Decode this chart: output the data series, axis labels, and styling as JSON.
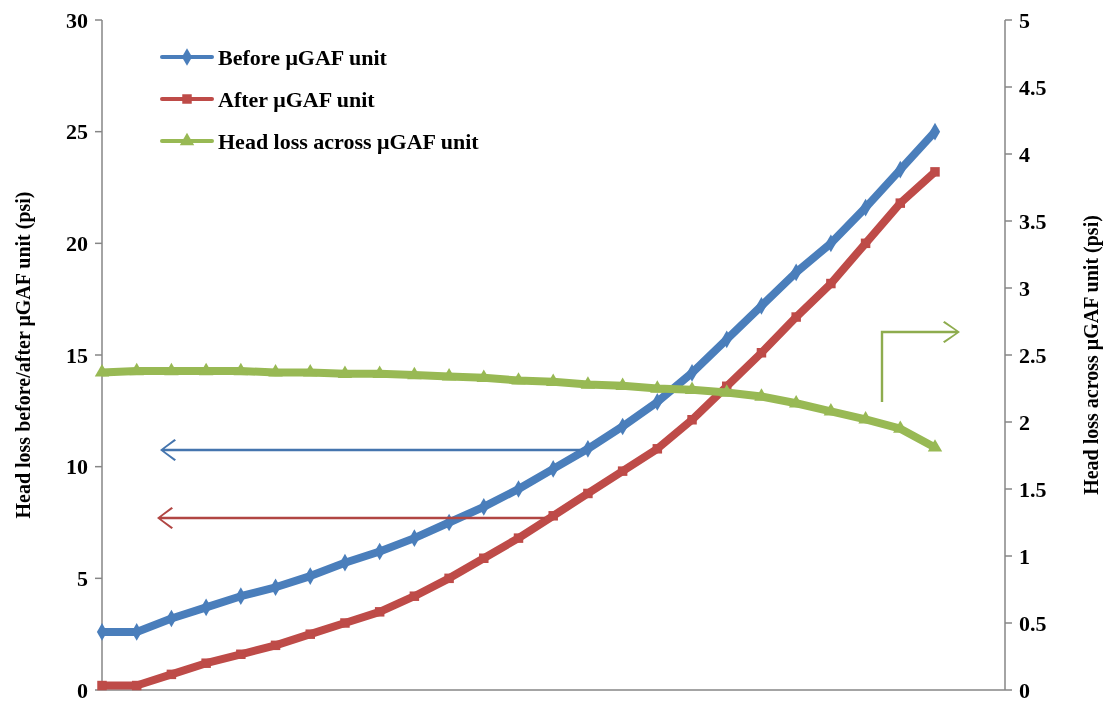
{
  "chart_data": {
    "type": "line",
    "ylabel": "Head loss before/after μGAF unit (psi)",
    "y2label": "Head loss across μGAF unit (psi)",
    "categories": [
      null,
      null,
      null,
      null,
      null,
      null,
      null,
      null,
      null,
      null,
      null,
      null,
      null,
      null,
      null,
      null,
      null,
      null,
      null,
      null,
      null,
      null,
      null,
      null,
      null
    ],
    "series": [
      {
        "name": "Before μGAF unit",
        "color": "#4a7ebb",
        "marker": "diamond",
        "values": [
          2.6,
          2.6,
          3.2,
          3.7,
          4.2,
          4.6,
          5.1,
          5.7,
          6.2,
          6.8,
          7.5,
          8.2,
          9.0,
          9.9,
          10.8,
          11.8,
          12.9,
          14.2,
          15.7,
          17.2,
          18.7,
          20.0,
          21.6,
          23.3,
          25.0
        ]
      },
      {
        "name": "After μGAF unit",
        "color": "#be4b48",
        "marker": "square",
        "values": [
          0.2,
          0.2,
          0.7,
          1.2,
          1.6,
          2.0,
          2.5,
          3.0,
          3.5,
          4.2,
          5.0,
          5.9,
          6.8,
          7.8,
          8.8,
          9.8,
          10.8,
          12.1,
          13.6,
          15.1,
          16.7,
          18.2,
          20.0,
          21.8,
          23.2
        ]
      },
      {
        "name": "Head loss across μGAF unit",
        "color": "#98b954",
        "marker": "triangle",
        "axis": "y2",
        "values": [
          2.37,
          2.38,
          2.38,
          2.38,
          2.38,
          2.37,
          2.37,
          2.36,
          2.36,
          2.35,
          2.34,
          2.33,
          2.31,
          2.3,
          2.28,
          2.27,
          2.25,
          2.24,
          2.22,
          2.19,
          2.14,
          2.08,
          2.02,
          1.95,
          1.81
        ]
      }
    ],
    "ylim": [
      0,
      30
    ],
    "yticks": [
      0,
      5,
      10,
      15,
      20,
      25,
      30
    ],
    "y2lim": [
      0,
      5
    ],
    "y2ticks": [
      0,
      0.5,
      1,
      1.5,
      2,
      2.5,
      3,
      3.5,
      4,
      4.5,
      5
    ],
    "legend": "top left",
    "grid": false,
    "line_style": "solid"
  }
}
